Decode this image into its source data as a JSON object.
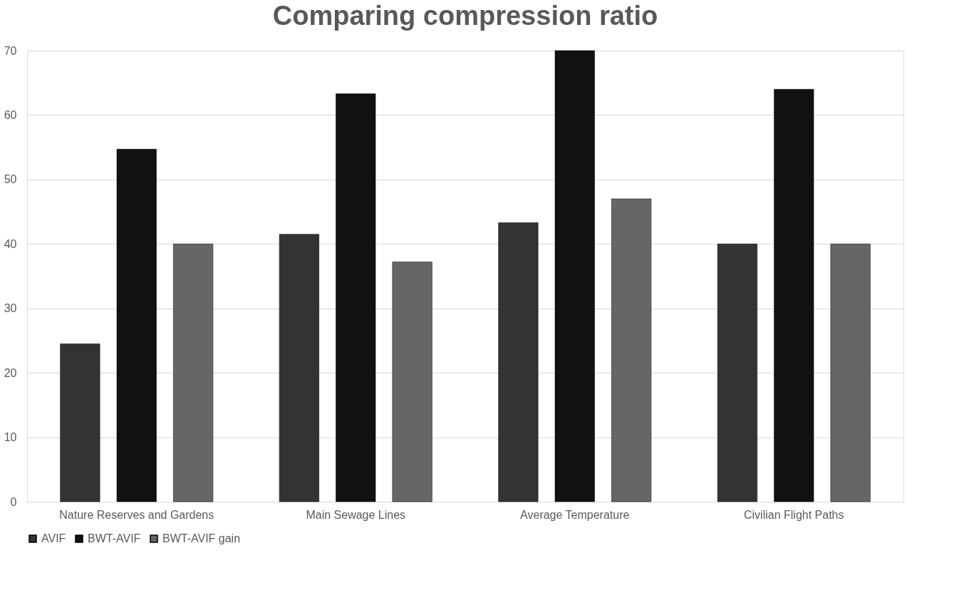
{
  "chart_data": {
    "type": "bar",
    "title": "Comparing compression ratio",
    "categories": [
      "Nature Reserves and Gardens",
      "Main Sewage Lines",
      "Average Temperature",
      "Civilian Flight Paths"
    ],
    "series": [
      {
        "name": "AVIF",
        "color": "#333333",
        "values": [
          24.5,
          41.5,
          43.3,
          40.0
        ]
      },
      {
        "name": "BWT-AVIF",
        "color": "#111111",
        "values": [
          54.7,
          63.3,
          70.0,
          64.0
        ]
      },
      {
        "name": "BWT-AVIF gain",
        "color": "#666666",
        "values": [
          40.0,
          37.2,
          47.0,
          40.0
        ]
      }
    ],
    "ylim": [
      0,
      70
    ],
    "yticks": [
      0,
      10,
      20,
      30,
      40,
      50,
      60,
      70
    ],
    "grid": "y",
    "legend": "bottom"
  }
}
